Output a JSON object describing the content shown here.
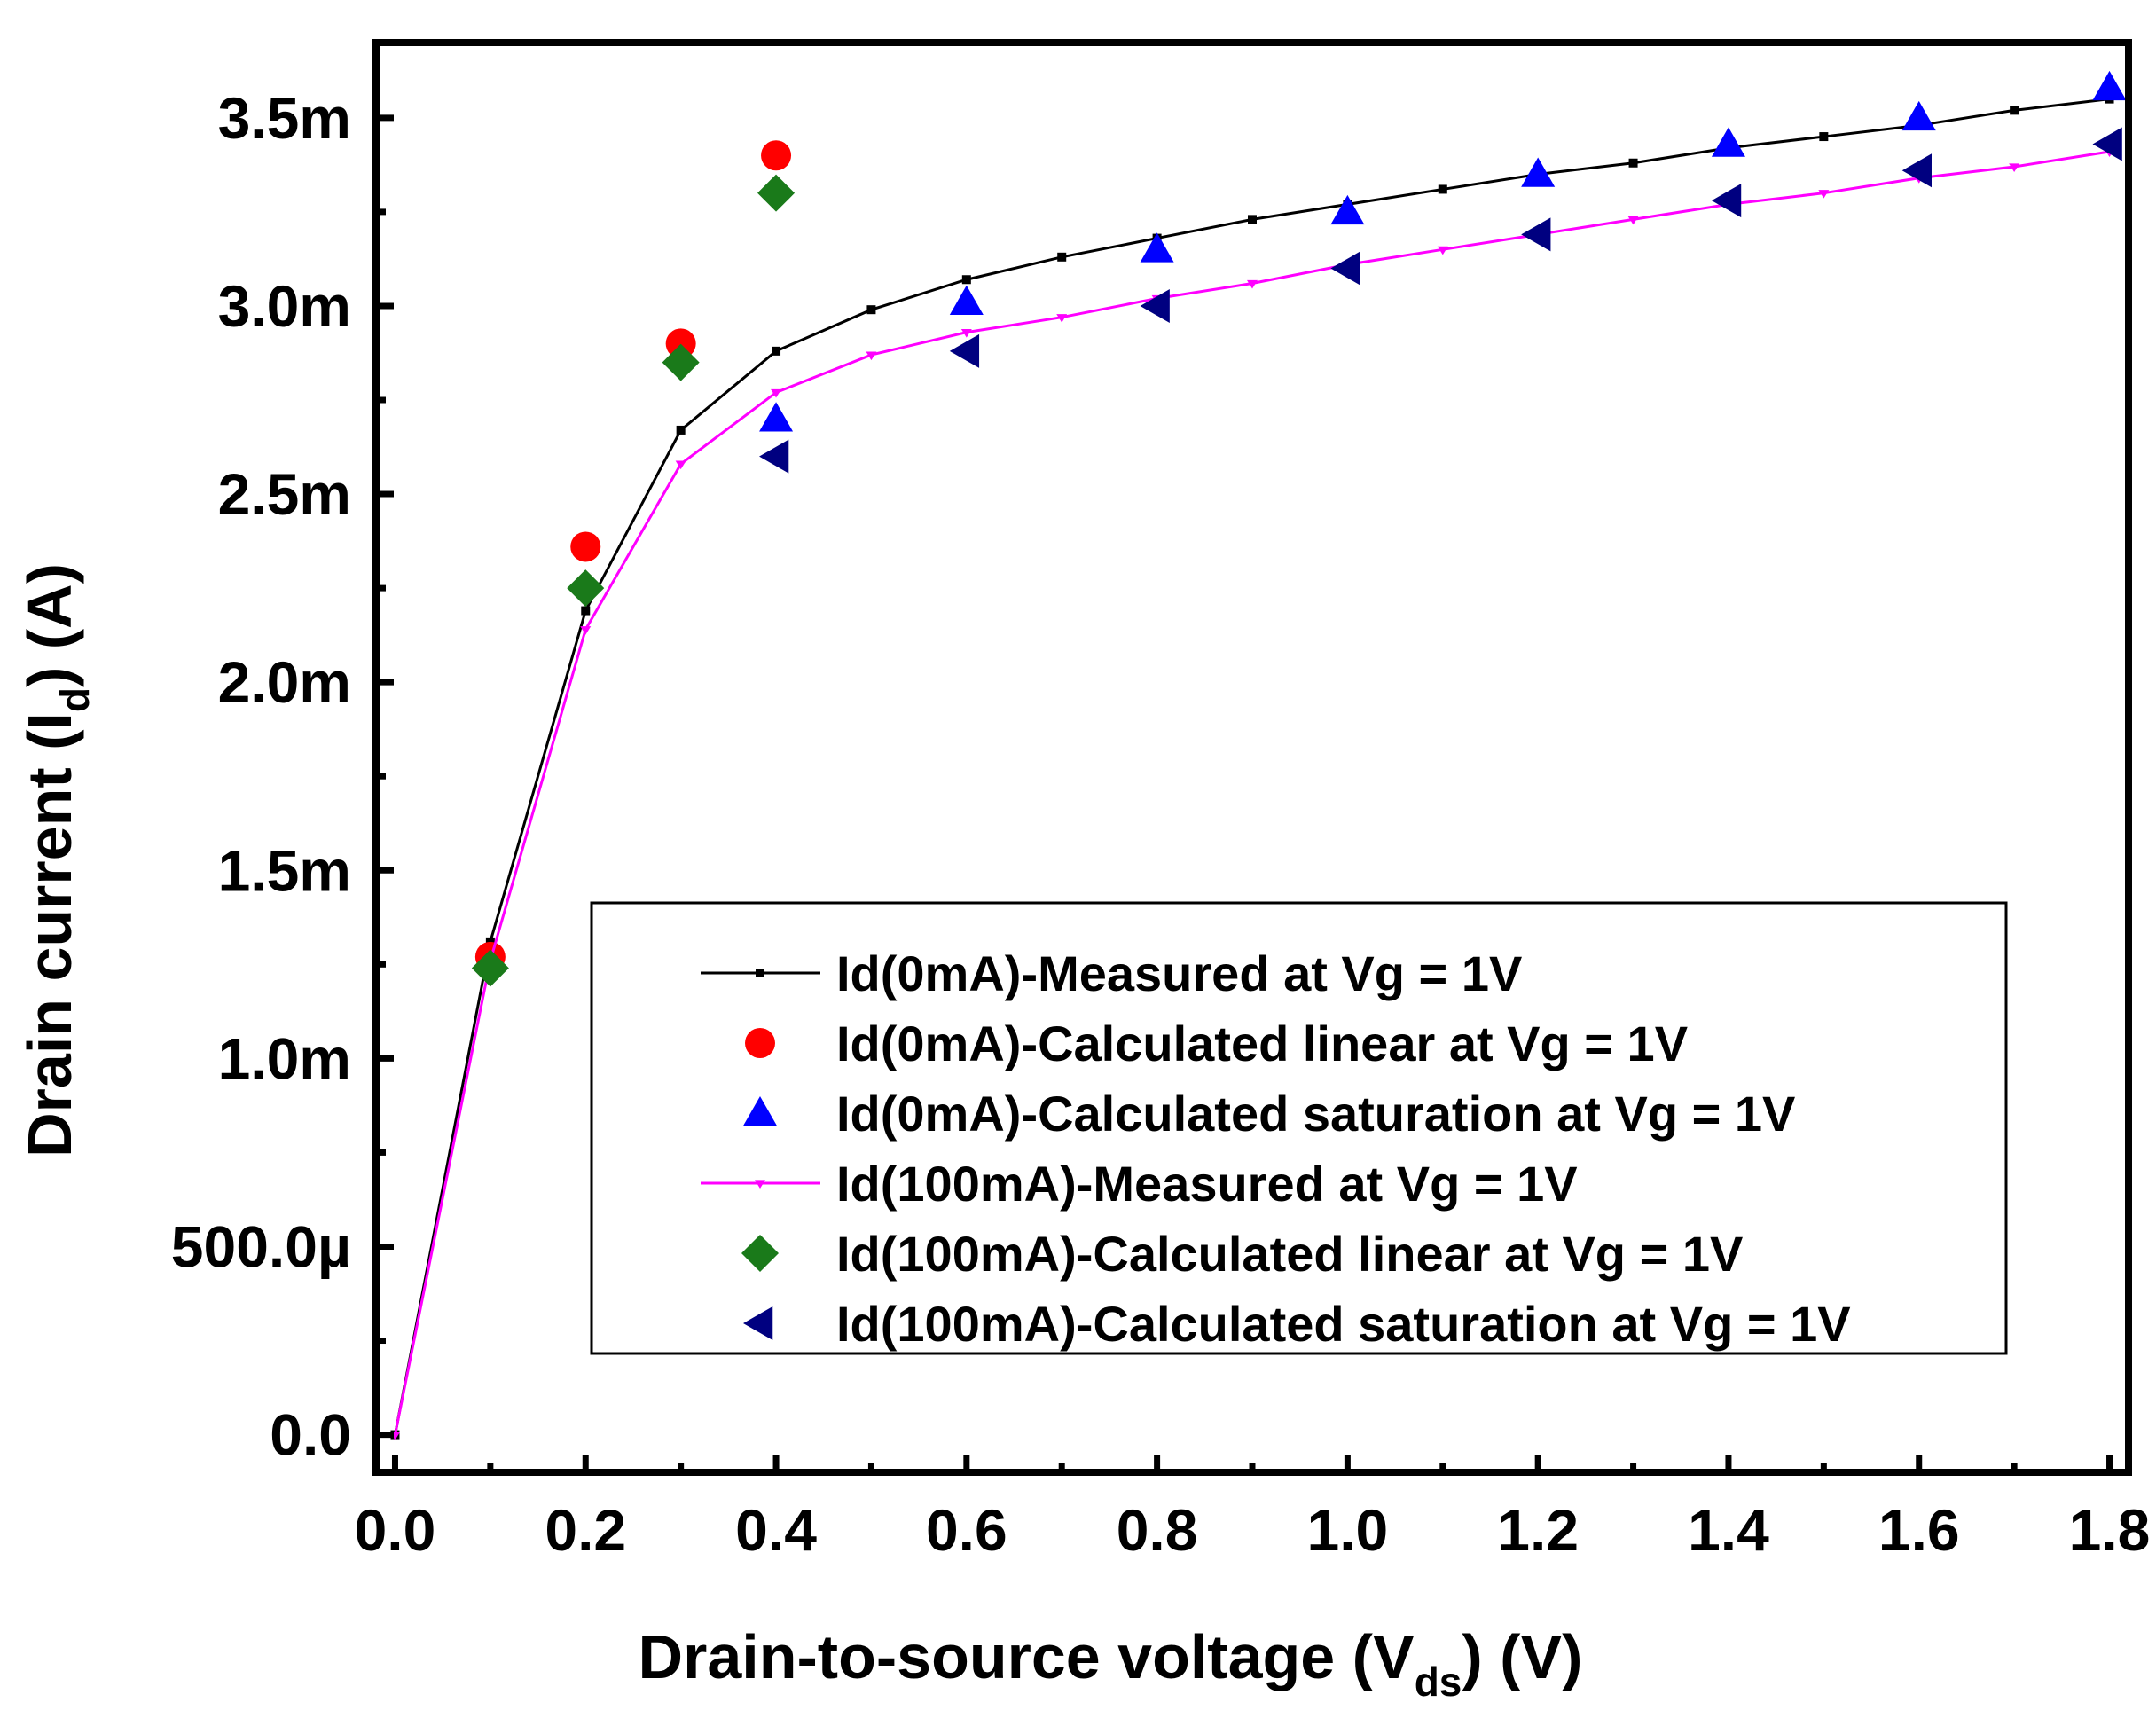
{
  "chart_data": {
    "type": "line",
    "title": "",
    "xlabel": {
      "main": "Drain-to-source voltage (V",
      "sub": "ds",
      "tail": ") (V)"
    },
    "ylabel": {
      "main": "Drain current (I",
      "sub": "d",
      "tail": ") (A)"
    },
    "xlim": [
      -0.02,
      1.82
    ],
    "ylim": [
      -0.0001,
      0.0037
    ],
    "x_ticks": [
      0.0,
      0.2,
      0.4,
      0.6,
      0.8,
      1.0,
      1.2,
      1.4,
      1.6,
      1.8
    ],
    "x_tick_labels": [
      "0.0",
      "0.2",
      "0.4",
      "0.6",
      "0.8",
      "1.0",
      "1.2",
      "1.4",
      "1.6",
      "1.8"
    ],
    "y_ticks": [
      0.0,
      0.0005,
      0.001,
      0.0015,
      0.002,
      0.0025,
      0.003,
      0.0035
    ],
    "y_tick_labels": [
      "0.0",
      "500.0µ",
      "1.0m",
      "1.5m",
      "2.0m",
      "2.5m",
      "3.0m",
      "3.5m"
    ],
    "legend_position": "lower-right",
    "series": [
      {
        "name": "Id(0mA)-Measured at Vg = 1V",
        "style": "line",
        "marker": "square",
        "color": "#000000",
        "x": [
          0.0,
          0.1,
          0.2,
          0.3,
          0.4,
          0.5,
          0.6,
          0.7,
          0.8,
          0.9,
          1.0,
          1.1,
          1.2,
          1.3,
          1.4,
          1.5,
          1.6,
          1.7,
          1.8
        ],
        "y": [
          0.0,
          0.00131,
          0.00219,
          0.00267,
          0.00288,
          0.00299,
          0.00307,
          0.00313,
          0.00318,
          0.00323,
          0.00327,
          0.00331,
          0.00335,
          0.00338,
          0.00342,
          0.00345,
          0.00348,
          0.00352,
          0.00355
        ]
      },
      {
        "name": "Id(0mA)-Calculated linear at Vg = 1V",
        "style": "scatter",
        "marker": "circle",
        "color": "#ff0000",
        "x": [
          0.1,
          0.2,
          0.3,
          0.4
        ],
        "y": [
          0.00127,
          0.00236,
          0.0029,
          0.0034
        ]
      },
      {
        "name": "Id(0mA)-Calculated saturation at Vg = 1V",
        "style": "scatter",
        "marker": "triangle-up",
        "color": "#0000ff",
        "x": [
          0.4,
          0.6,
          0.8,
          1.0,
          1.2,
          1.4,
          1.6,
          1.8
        ],
        "y": [
          0.0027,
          0.00301,
          0.00315,
          0.00325,
          0.00335,
          0.00343,
          0.0035,
          0.00358
        ]
      },
      {
        "name": "Id(100mA)-Measured at Vg = 1V",
        "style": "line",
        "marker": "triangle-down",
        "color": "#ff00ff",
        "x": [
          0.0,
          0.1,
          0.2,
          0.3,
          0.4,
          0.5,
          0.6,
          0.7,
          0.8,
          0.9,
          1.0,
          1.1,
          1.2,
          1.3,
          1.4,
          1.5,
          1.6,
          1.7,
          1.8
        ],
        "y": [
          0.0,
          0.00126,
          0.00214,
          0.00258,
          0.00277,
          0.00287,
          0.00293,
          0.00297,
          0.00302,
          0.00306,
          0.00311,
          0.00315,
          0.00319,
          0.00323,
          0.00327,
          0.0033,
          0.00334,
          0.00337,
          0.00341
        ]
      },
      {
        "name": "Id(100mA)-Calculated linear at Vg = 1V",
        "style": "scatter",
        "marker": "diamond",
        "color": "#1a7a1a",
        "x": [
          0.1,
          0.2,
          0.3,
          0.4
        ],
        "y": [
          0.00124,
          0.00225,
          0.00285,
          0.0033
        ]
      },
      {
        "name": "Id(100mA)-Calculated saturation at Vg = 1V",
        "style": "scatter",
        "marker": "triangle-left",
        "color": "#000080",
        "x": [
          0.4,
          0.6,
          0.8,
          1.0,
          1.2,
          1.4,
          1.6,
          1.8
        ],
        "y": [
          0.0026,
          0.00288,
          0.003,
          0.0031,
          0.00319,
          0.00328,
          0.00336,
          0.00343
        ]
      }
    ]
  }
}
